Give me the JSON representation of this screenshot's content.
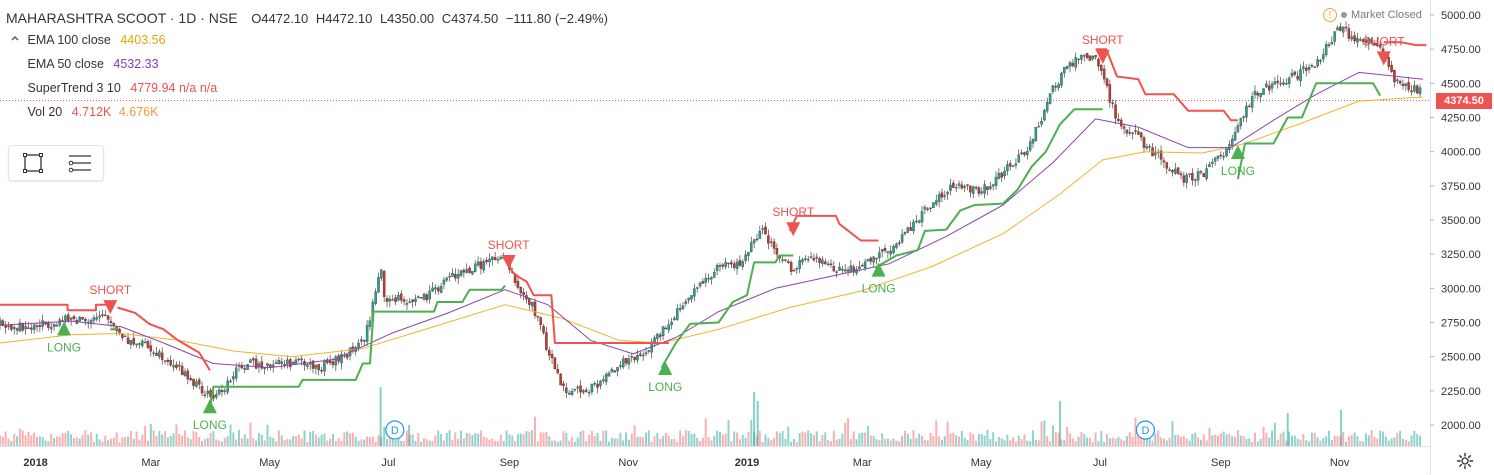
{
  "header": {
    "symbol": "MAHARASHTRA SCOOT · 1D · NSE",
    "open": "O4472.10",
    "high": "H4472.10",
    "low": "L4350.00",
    "close": "C4374.50",
    "change": "−111.80 (−2.49%)"
  },
  "indicators": [
    {
      "name": "EMA 100 close",
      "value": "4403.56",
      "color": "#e0b020"
    },
    {
      "name": "EMA 50 close",
      "value": "4532.33",
      "color": "#7a3fc4"
    },
    {
      "name": "SuperTrend 3 10",
      "value": "4779.94 n/a n/a",
      "color": "#ef5350"
    },
    {
      "name": "Vol 20",
      "value": "4.712K",
      "value2": "4.676K",
      "color": "#ef5350",
      "color2": "#f59a3d"
    }
  ],
  "market_status": {
    "warning_glyph": "!",
    "label": "Market Closed"
  },
  "last_price": {
    "label": "4374.50",
    "value": 4374.5,
    "color": "#ef5350"
  },
  "icons": {
    "collapse": "chevron-collapse-icon",
    "rectangle": "rectangle-tool-icon",
    "lines": "horizontal-lines-tool-icon",
    "settings": "gear-icon"
  },
  "colors": {
    "up": "#26a69a",
    "down": "#ef5350",
    "supertrend_up": "#4caf50",
    "supertrend_down": "#ef5350",
    "signal_long": "#4caf50",
    "signal_short": "#ef5350",
    "ema100": "#f0b429",
    "ema50": "#8e44ad"
  },
  "chart_data": {
    "type": "candlestick",
    "y_ticks": [
      2000,
      2250,
      2500,
      2750,
      3000,
      3250,
      3500,
      3750,
      4000,
      4250,
      4500,
      4750,
      5000
    ],
    "y_tick_labels": [
      "2000.00",
      "2250.00",
      "2500.00",
      "2750.00",
      "3000.00",
      "3250.00",
      "3500.00",
      "3750.00",
      "4000.00",
      "4250.00",
      "4500.00",
      "4750.00",
      "5000.00"
    ],
    "ylim": [
      1950,
      5000
    ],
    "x_range": [
      2017.95,
      2019.96
    ],
    "x_ticks": [
      {
        "label": "2018",
        "x": 2018.0
      },
      {
        "label": "Mar",
        "x": 2018.162
      },
      {
        "label": "May",
        "x": 2018.329
      },
      {
        "label": "Jul",
        "x": 2018.496
      },
      {
        "label": "Sep",
        "x": 2018.666
      },
      {
        "label": "Nov",
        "x": 2018.833
      },
      {
        "label": "2019",
        "x": 2019.0
      },
      {
        "label": "Mar",
        "x": 2019.162
      },
      {
        "label": "May",
        "x": 2019.329
      },
      {
        "label": "Jul",
        "x": 2019.496
      },
      {
        "label": "Sep",
        "x": 2019.666
      },
      {
        "label": "Nov",
        "x": 2019.833
      }
    ],
    "price_path": [
      [
        2017.95,
        2740
      ],
      [
        2017.99,
        2710
      ],
      [
        2018.03,
        2760
      ],
      [
        2018.07,
        2780
      ],
      [
        2018.1,
        2780
      ],
      [
        2018.13,
        2620
      ],
      [
        2018.16,
        2570
      ],
      [
        2018.19,
        2470
      ],
      [
        2018.22,
        2320
      ],
      [
        2018.245,
        2200
      ],
      [
        2018.26,
        2240
      ],
      [
        2018.29,
        2440
      ],
      [
        2018.33,
        2450
      ],
      [
        2018.37,
        2460
      ],
      [
        2018.4,
        2420
      ],
      [
        2018.43,
        2490
      ],
      [
        2018.46,
        2620
      ],
      [
        2018.47,
        2760
      ],
      [
        2018.475,
        2920
      ],
      [
        2018.485,
        3150
      ],
      [
        2018.49,
        2930
      ],
      [
        2018.52,
        2910
      ],
      [
        2018.55,
        2930
      ],
      [
        2018.58,
        3080
      ],
      [
        2018.61,
        3130
      ],
      [
        2018.64,
        3210
      ],
      [
        2018.66,
        3200
      ],
      [
        2018.68,
        2980
      ],
      [
        2018.7,
        2860
      ],
      [
        2018.72,
        2550
      ],
      [
        2018.74,
        2280
      ],
      [
        2018.76,
        2250
      ],
      [
        2018.79,
        2290
      ],
      [
        2018.82,
        2450
      ],
      [
        2018.85,
        2490
      ],
      [
        2018.88,
        2690
      ],
      [
        2018.92,
        2960
      ],
      [
        2018.96,
        3150
      ],
      [
        2018.99,
        3180
      ],
      [
        2019.02,
        3420
      ],
      [
        2019.04,
        3260
      ],
      [
        2019.06,
        3150
      ],
      [
        2019.09,
        3220
      ],
      [
        2019.12,
        3150
      ],
      [
        2019.15,
        3130
      ],
      [
        2019.18,
        3240
      ],
      [
        2019.21,
        3320
      ],
      [
        2019.25,
        3580
      ],
      [
        2019.29,
        3750
      ],
      [
        2019.33,
        3720
      ],
      [
        2019.36,
        3850
      ],
      [
        2019.39,
        3980
      ],
      [
        2019.41,
        4200
      ],
      [
        2019.43,
        4450
      ],
      [
        2019.45,
        4620
      ],
      [
        2019.47,
        4690
      ],
      [
        2019.49,
        4680
      ],
      [
        2019.5,
        4560
      ],
      [
        2019.52,
        4230
      ],
      [
        2019.55,
        4100
      ],
      [
        2019.58,
        3950
      ],
      [
        2019.61,
        3800
      ],
      [
        2019.64,
        3830
      ],
      [
        2019.67,
        3990
      ],
      [
        2019.69,
        4200
      ],
      [
        2019.71,
        4400
      ],
      [
        2019.74,
        4500
      ],
      [
        2019.77,
        4550
      ],
      [
        2019.8,
        4650
      ],
      [
        2019.83,
        4900
      ],
      [
        2019.86,
        4830
      ],
      [
        2019.89,
        4760
      ],
      [
        2019.91,
        4500
      ],
      [
        2019.935,
        4470
      ],
      [
        2019.95,
        4420
      ]
    ],
    "ema50_path": [
      [
        2017.95,
        2730
      ],
      [
        2018.05,
        2760
      ],
      [
        2018.12,
        2720
      ],
      [
        2018.18,
        2600
      ],
      [
        2018.25,
        2450
      ],
      [
        2018.33,
        2420
      ],
      [
        2018.42,
        2480
      ],
      [
        2018.5,
        2670
      ],
      [
        2018.58,
        2820
      ],
      [
        2018.66,
        2990
      ],
      [
        2018.72,
        2880
      ],
      [
        2018.78,
        2620
      ],
      [
        2018.84,
        2520
      ],
      [
        2018.9,
        2640
      ],
      [
        2018.96,
        2830
      ],
      [
        2019.04,
        3000
      ],
      [
        2019.12,
        3090
      ],
      [
        2019.2,
        3180
      ],
      [
        2019.28,
        3380
      ],
      [
        2019.36,
        3610
      ],
      [
        2019.43,
        3920
      ],
      [
        2019.49,
        4240
      ],
      [
        2019.55,
        4180
      ],
      [
        2019.62,
        4030
      ],
      [
        2019.68,
        4030
      ],
      [
        2019.74,
        4230
      ],
      [
        2019.8,
        4420
      ],
      [
        2019.86,
        4580
      ],
      [
        2019.95,
        4530
      ]
    ],
    "ema100_path": [
      [
        2017.95,
        2600
      ],
      [
        2018.05,
        2660
      ],
      [
        2018.12,
        2670
      ],
      [
        2018.2,
        2620
      ],
      [
        2018.28,
        2540
      ],
      [
        2018.36,
        2500
      ],
      [
        2018.46,
        2560
      ],
      [
        2018.56,
        2720
      ],
      [
        2018.66,
        2880
      ],
      [
        2018.74,
        2780
      ],
      [
        2018.82,
        2620
      ],
      [
        2018.88,
        2600
      ],
      [
        2018.96,
        2700
      ],
      [
        2019.06,
        2860
      ],
      [
        2019.16,
        2980
      ],
      [
        2019.26,
        3160
      ],
      [
        2019.36,
        3400
      ],
      [
        2019.44,
        3690
      ],
      [
        2019.5,
        3940
      ],
      [
        2019.56,
        4000
      ],
      [
        2019.64,
        3990
      ],
      [
        2019.7,
        4060
      ],
      [
        2019.78,
        4210
      ],
      [
        2019.86,
        4370
      ],
      [
        2019.95,
        4400
      ]
    ],
    "supertrend": [
      {
        "dir": "down",
        "points": [
          [
            2017.95,
            2880
          ],
          [
            2018.045,
            2880
          ],
          [
            2018.045,
            2840
          ],
          [
            2018.085,
            2840
          ],
          [
            2018.085,
            2880
          ],
          [
            2018.105,
            2880
          ]
        ]
      },
      {
        "dir": "up",
        "points": [
          [
            2018.105,
            2700
          ],
          [
            2018.115,
            2700
          ]
        ]
      },
      {
        "dir": "down",
        "points": [
          [
            2018.115,
            2860
          ],
          [
            2018.14,
            2820
          ],
          [
            2018.16,
            2740
          ],
          [
            2018.18,
            2700
          ],
          [
            2018.2,
            2620
          ],
          [
            2018.23,
            2530
          ],
          [
            2018.245,
            2400
          ]
        ]
      },
      {
        "dir": "up",
        "points": [
          [
            2018.245,
            2120
          ],
          [
            2018.25,
            2280
          ],
          [
            2018.37,
            2280
          ],
          [
            2018.375,
            2330
          ],
          [
            2018.45,
            2330
          ],
          [
            2018.46,
            2450
          ],
          [
            2018.47,
            2450
          ],
          [
            2018.475,
            2830
          ],
          [
            2018.56,
            2830
          ],
          [
            2018.565,
            2900
          ],
          [
            2018.6,
            2900
          ],
          [
            2018.61,
            2990
          ],
          [
            2018.655,
            2990
          ],
          [
            2018.66,
            3020
          ]
        ]
      },
      {
        "dir": "down",
        "points": [
          [
            2018.665,
            3180
          ],
          [
            2018.67,
            3120
          ],
          [
            2018.68,
            3080
          ],
          [
            2018.69,
            3050
          ],
          [
            2018.7,
            2950
          ],
          [
            2018.725,
            2950
          ],
          [
            2018.73,
            2600
          ],
          [
            2018.89,
            2600
          ]
        ]
      },
      {
        "dir": "up",
        "points": [
          [
            2018.88,
            2420
          ],
          [
            2018.9,
            2600
          ],
          [
            2018.92,
            2740
          ],
          [
            2018.96,
            2750
          ],
          [
            2018.98,
            2900
          ],
          [
            2019.0,
            2950
          ],
          [
            2019.01,
            3190
          ],
          [
            2019.04,
            3190
          ],
          [
            2019.045,
            3240
          ],
          [
            2019.065,
            3240
          ]
        ]
      },
      {
        "dir": "down",
        "points": [
          [
            2019.06,
            3420
          ],
          [
            2019.07,
            3530
          ],
          [
            2019.125,
            3530
          ],
          [
            2019.13,
            3470
          ],
          [
            2019.14,
            3430
          ],
          [
            2019.16,
            3350
          ],
          [
            2019.185,
            3350
          ]
        ]
      },
      {
        "dir": "up",
        "points": [
          [
            2019.18,
            3150
          ],
          [
            2019.21,
            3240
          ],
          [
            2019.24,
            3280
          ],
          [
            2019.25,
            3420
          ],
          [
            2019.28,
            3430
          ],
          [
            2019.3,
            3570
          ],
          [
            2019.32,
            3610
          ],
          [
            2019.36,
            3620
          ],
          [
            2019.38,
            3720
          ],
          [
            2019.4,
            3890
          ],
          [
            2019.42,
            4000
          ],
          [
            2019.44,
            4200
          ],
          [
            2019.46,
            4310
          ],
          [
            2019.5,
            4310
          ]
        ]
      },
      {
        "dir": "down",
        "points": [
          [
            2019.49,
            4750
          ],
          [
            2019.505,
            4750
          ],
          [
            2019.52,
            4550
          ],
          [
            2019.55,
            4530
          ],
          [
            2019.56,
            4420
          ],
          [
            2019.6,
            4420
          ],
          [
            2019.62,
            4300
          ],
          [
            2019.67,
            4300
          ],
          [
            2019.68,
            4230
          ],
          [
            2019.69,
            4230
          ]
        ]
      },
      {
        "dir": "up",
        "points": [
          [
            2019.69,
            3800
          ],
          [
            2019.7,
            4060
          ],
          [
            2019.74,
            4060
          ],
          [
            2019.76,
            4250
          ],
          [
            2019.78,
            4250
          ],
          [
            2019.8,
            4500
          ],
          [
            2019.88,
            4500
          ],
          [
            2019.89,
            4410
          ]
        ]
      },
      {
        "dir": "down",
        "points": [
          [
            2019.895,
            4800
          ],
          [
            2019.92,
            4800
          ],
          [
            2019.94,
            4780
          ],
          [
            2019.955,
            4780
          ]
        ]
      }
    ],
    "signals": [
      {
        "type": "long",
        "label": "LONG",
        "x": 2018.04,
        "y": 2700
      },
      {
        "type": "short",
        "label": "SHORT",
        "x": 2018.105,
        "y": 2870
      },
      {
        "type": "long",
        "label": "LONG",
        "x": 2018.245,
        "y": 2130
      },
      {
        "type": "short",
        "label": "SHORT",
        "x": 2018.665,
        "y": 3200
      },
      {
        "type": "long",
        "label": "LONG",
        "x": 2018.885,
        "y": 2410
      },
      {
        "type": "short",
        "label": "SHORT",
        "x": 2019.065,
        "y": 3440
      },
      {
        "type": "long",
        "label": "LONG",
        "x": 2019.185,
        "y": 3130
      },
      {
        "type": "short",
        "label": "SHORT",
        "x": 2019.5,
        "y": 4700
      },
      {
        "type": "long",
        "label": "LONG",
        "x": 2019.69,
        "y": 3990
      },
      {
        "type": "short",
        "label": "SHORT",
        "x": 2019.895,
        "y": 4690
      }
    ],
    "dividend_markers": [
      {
        "label": "D",
        "x": 2018.505
      },
      {
        "label": "D",
        "x": 2019.56
      }
    ],
    "volume_spikes": [
      {
        "x": 2018.485,
        "rel": 0.98,
        "dir": "up"
      },
      {
        "x": 2018.525,
        "rel": 0.35,
        "dir": "up"
      },
      {
        "x": 2019.01,
        "rel": 0.9,
        "dir": "up"
      },
      {
        "x": 2019.015,
        "rel": 0.75,
        "dir": "up"
      },
      {
        "x": 2019.44,
        "rel": 0.75,
        "dir": "up"
      },
      {
        "x": 2019.76,
        "rel": 0.55,
        "dir": "up"
      },
      {
        "x": 2019.835,
        "rel": 0.6,
        "dir": "up"
      }
    ]
  }
}
